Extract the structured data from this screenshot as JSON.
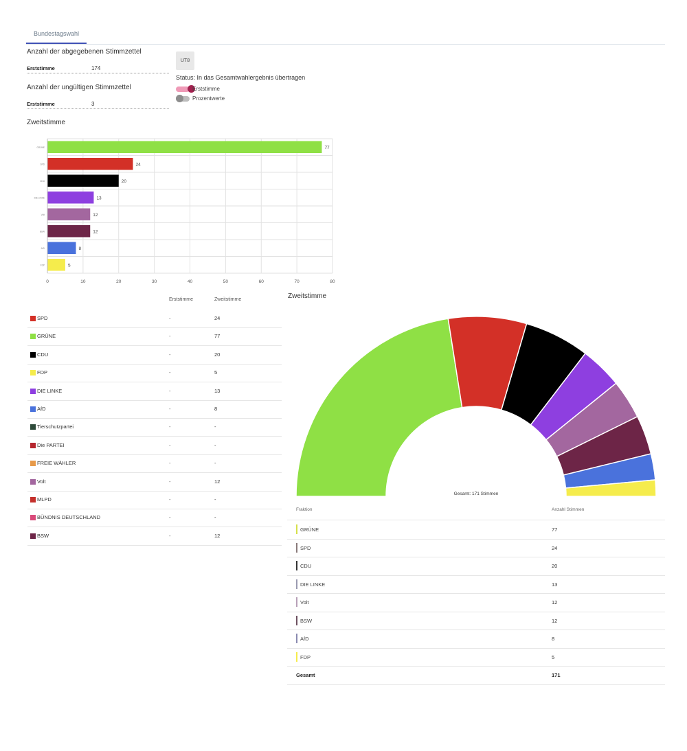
{
  "tabs": [
    {
      "label": "Bundestagswahl"
    }
  ],
  "ballots": {
    "cast_title": "Anzahl der abgegebenen Stimmzettel",
    "cast_field_label": "Erststimme",
    "cast_field_value": "174",
    "invalid_title": "Anzahl der ungültigen Stimmzettel",
    "invalid_field_label": "Erststimme",
    "invalid_field_value": "3"
  },
  "ut8_button": "UT8",
  "status_text": "Status: In das Gesamtwahlergebnis übertragen",
  "toggles": {
    "erststimme_label": "Erststimme",
    "erststimme_on": true,
    "prozent_label": "Prozentwerte",
    "prozent_on": false,
    "on_color": "#a3214f",
    "on_track_color": "#ef9ab7"
  },
  "zweitstimme_title": "Zweitstimme",
  "chart_data": [
    {
      "type": "bar",
      "orientation": "horizontal",
      "title": "Zweitstimme",
      "categories": [
        "GRÜNE",
        "SPD",
        "CDU",
        "DIE LINKE",
        "Volt",
        "BSW",
        "AfD",
        "FDP"
      ],
      "values": [
        77,
        24,
        20,
        13,
        12,
        12,
        8,
        5
      ],
      "colors": [
        "#8fe045",
        "#d33027",
        "#000000",
        "#8e3fe0",
        "#a3679f",
        "#6d2547",
        "#4a72dc",
        "#f5ec4c"
      ],
      "xlim": [
        0,
        80
      ],
      "xticks": [
        0,
        10,
        20,
        30,
        40,
        50,
        60,
        70,
        80
      ],
      "grid": true
    },
    {
      "type": "pie",
      "variant": "semicircle-donut",
      "title": "Zweitstimme",
      "center_label": "Gesamt: 171 Stimmen",
      "categories": [
        "GRÜNE",
        "SPD",
        "CDU",
        "DIE LINKE",
        "Volt",
        "BSW",
        "AfD",
        "FDP"
      ],
      "values": [
        77,
        24,
        20,
        13,
        12,
        12,
        8,
        5
      ],
      "colors": [
        "#8fe045",
        "#d33027",
        "#000000",
        "#8e3fe0",
        "#a3679f",
        "#6d2547",
        "#4a72dc",
        "#f5ec4c"
      ]
    }
  ],
  "party_table": {
    "headers": [
      "Erststimme",
      "Zweitstimme"
    ],
    "rows": [
      {
        "name": "SPD",
        "color": "#d33027",
        "erst": "-",
        "zweit": "24"
      },
      {
        "name": "GRÜNE",
        "color": "#8fe045",
        "erst": "-",
        "zweit": "77"
      },
      {
        "name": "CDU",
        "color": "#000000",
        "erst": "-",
        "zweit": "20"
      },
      {
        "name": "FDP",
        "color": "#f5ec4c",
        "erst": "-",
        "zweit": "5"
      },
      {
        "name": "DIE LINKE",
        "color": "#8e3fe0",
        "erst": "-",
        "zweit": "13"
      },
      {
        "name": "AfD",
        "color": "#4a72dc",
        "erst": "-",
        "zweit": "8"
      },
      {
        "name": "Tierschutzpartei",
        "color": "#2e4a3a",
        "erst": "-",
        "zweit": "-"
      },
      {
        "name": "Die PARTEI",
        "color": "#b5262e",
        "erst": "-",
        "zweit": "-"
      },
      {
        "name": "FREIE WÄHLER",
        "color": "#e79a4a",
        "erst": "-",
        "zweit": "-"
      },
      {
        "name": "Volt",
        "color": "#a3679f",
        "erst": "-",
        "zweit": "12"
      },
      {
        "name": "MLPD",
        "color": "#c4302b",
        "erst": "-",
        "zweit": "-"
      },
      {
        "name": "BÜNDNIS DEUTSCHLAND",
        "color": "#d94a7a",
        "erst": "-",
        "zweit": "-"
      },
      {
        "name": "BSW",
        "color": "#6d2547",
        "erst": "-",
        "zweit": "12"
      }
    ]
  },
  "faction_table": {
    "headers": [
      "Fraktion",
      "Anzahl Stimmen"
    ],
    "rows": [
      {
        "name": "GRÜNE",
        "color": "#d6e04a",
        "value": "77"
      },
      {
        "name": "SPD",
        "color": "#8a7a7a",
        "value": "24"
      },
      {
        "name": "CDU",
        "color": "#333333",
        "value": "20"
      },
      {
        "name": "DIE LINKE",
        "color": "#9a9ab0",
        "value": "13"
      },
      {
        "name": "Volt",
        "color": "#b8a0b8",
        "value": "12"
      },
      {
        "name": "BSW",
        "color": "#6d5060",
        "value": "12"
      },
      {
        "name": "AfD",
        "color": "#8a8ab0",
        "value": "8"
      },
      {
        "name": "FDP",
        "color": "#f5ec4c",
        "value": "5"
      }
    ],
    "total_label": "Gesamt",
    "total_value": "171"
  }
}
